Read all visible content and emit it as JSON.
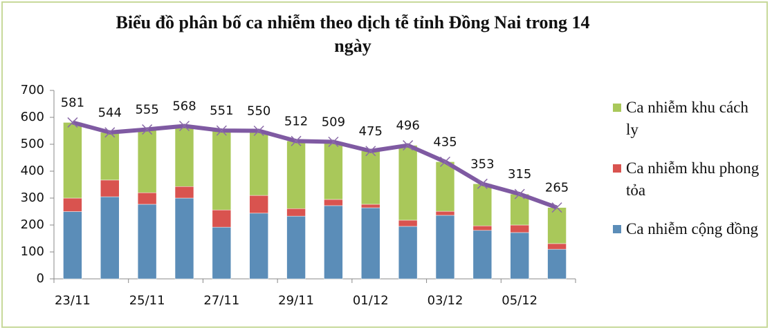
{
  "chart_data": {
    "type": "stacked_bar_line",
    "title": "Biểu đồ phân bố ca nhiễm theo dịch tễ tỉnh Đồng Nai trong 14 ngày",
    "categories": [
      "23/11",
      null,
      "25/11",
      null,
      "27/11",
      null,
      "29/11",
      null,
      "01/12",
      null,
      "03/12",
      null,
      "05/12",
      null
    ],
    "series": [
      {
        "name": "Ca nhiễm cộng đồng",
        "color": "#5b8db8",
        "values": [
          250,
          305,
          277,
          300,
          192,
          244,
          233,
          272,
          264,
          195,
          236,
          180,
          172,
          110
        ]
      },
      {
        "name": "Ca nhiễm khu phong tỏa",
        "color": "#d9534f",
        "values": [
          50,
          62,
          43,
          43,
          64,
          66,
          28,
          23,
          13,
          23,
          15,
          17,
          28,
          21
        ]
      },
      {
        "name": "Ca nhiễm khu cách ly",
        "color": "#a9c85a",
        "values": [
          281,
          177,
          235,
          225,
          295,
          240,
          251,
          214,
          198,
          278,
          184,
          156,
          115,
          134
        ]
      }
    ],
    "line": {
      "color": "#7f5aa2",
      "values": [
        581,
        544,
        555,
        568,
        551,
        550,
        512,
        509,
        475,
        496,
        435,
        353,
        315,
        265
      ]
    },
    "ylim": [
      0,
      700
    ],
    "yticks": [
      0,
      100,
      200,
      300,
      400,
      500,
      600,
      700
    ],
    "grid": false
  }
}
